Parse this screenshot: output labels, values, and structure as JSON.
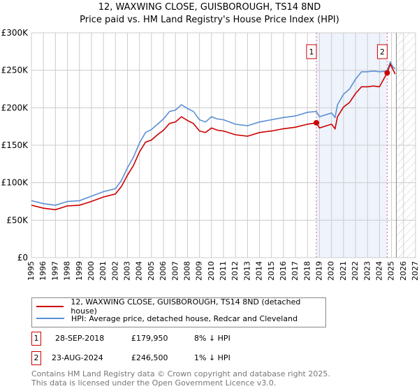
{
  "title": "12, WAXWING CLOSE, GUISBOROUGH, TS14 8ND",
  "subtitle": "Price paid vs. HM Land Registry's House Price Index (HPI)",
  "chart_data": {
    "type": "line",
    "title": "12, WAXWING CLOSE, GUISBOROUGH, TS14 8ND — Price paid vs. HM Land Registry's House Price Index (HPI)",
    "xlabel": "",
    "ylabel": "",
    "xlim": [
      1995,
      2027
    ],
    "ylim": [
      0,
      300000
    ],
    "grid": true,
    "x_ticks": [
      "1995",
      "1996",
      "1997",
      "1998",
      "1999",
      "2000",
      "2001",
      "2002",
      "2003",
      "2004",
      "2005",
      "2006",
      "2007",
      "2008",
      "2009",
      "2010",
      "2011",
      "2012",
      "2013",
      "2014",
      "2015",
      "2016",
      "2017",
      "2018",
      "2019",
      "2020",
      "2021",
      "2022",
      "2023",
      "2024",
      "2025",
      "2026",
      "2027"
    ],
    "y_ticks": [
      {
        "value": 0,
        "label": "£0"
      },
      {
        "value": 50000,
        "label": "£50K"
      },
      {
        "value": 100000,
        "label": "£100K"
      },
      {
        "value": 150000,
        "label": "£150K"
      },
      {
        "value": 200000,
        "label": "£200K"
      },
      {
        "value": 250000,
        "label": "£250K"
      },
      {
        "value": 300000,
        "label": "£300K"
      }
    ],
    "x": [
      1995,
      1996,
      1997,
      1998,
      1999,
      2000,
      2001,
      2002,
      2002.5,
      2003,
      2003.5,
      2004,
      2004.5,
      2005,
      2005.5,
      2006,
      2006.5,
      2007,
      2007.5,
      2008,
      2008.5,
      2009,
      2009.5,
      2010,
      2010.5,
      2011,
      2012,
      2013,
      2014,
      2015,
      2016,
      2017,
      2018,
      2018.74,
      2019,
      2020,
      2020.3,
      2020.5,
      2021,
      2021.5,
      2022,
      2022.5,
      2023,
      2023.5,
      2024,
      2024.64,
      2024.9,
      2025.1,
      2025.3
    ],
    "series": [
      {
        "name": "12, WAXWING CLOSE, GUISBOROUGH, TS14 8ND (detached house)",
        "color": "#cc0000",
        "values": [
          70000,
          66000,
          64000,
          69000,
          70000,
          75000,
          81000,
          85000,
          95000,
          110000,
          123000,
          141000,
          154000,
          157000,
          164000,
          170000,
          179000,
          181000,
          188000,
          183000,
          179000,
          169000,
          167000,
          173000,
          170000,
          169000,
          164000,
          162000,
          167000,
          169000,
          172000,
          174000,
          178000,
          179950,
          173000,
          178000,
          172000,
          188000,
          201000,
          207000,
          219000,
          228000,
          228000,
          229000,
          228000,
          246500,
          258000,
          252000,
          245000
        ]
      },
      {
        "name": "HPI: Average price, detached house, Redcar and Cleveland",
        "color": "#5b8fd4",
        "values": [
          76000,
          72000,
          70000,
          75000,
          76000,
          82000,
          88000,
          92000,
          103000,
          120000,
          134000,
          153000,
          167000,
          171000,
          178000,
          185000,
          195000,
          197000,
          204000,
          199000,
          195000,
          184000,
          181000,
          188000,
          185000,
          184000,
          178000,
          176000,
          181000,
          184000,
          187000,
          189000,
          194000,
          195000,
          188000,
          193000,
          187000,
          204000,
          218000,
          225000,
          238000,
          248000,
          248000,
          249000,
          248000,
          249000,
          261000,
          255000,
          252000
        ]
      }
    ],
    "sales": [
      {
        "id": "1",
        "x": 2018.74,
        "value": 179950
      },
      {
        "id": "2",
        "x": 2024.64,
        "value": 246500
      }
    ],
    "shaded_between_sales": true,
    "forecast_hatched_from": 2025.4,
    "legend_placement": "below"
  },
  "legend": {
    "items": [
      {
        "label": "12, WAXWING CLOSE, GUISBOROUGH, TS14 8ND (detached house)",
        "color": "#cc0000"
      },
      {
        "label": "HPI: Average price, detached house, Redcar and Cleveland",
        "color": "#5b8fd4"
      }
    ]
  },
  "transactions": [
    {
      "id": "1",
      "date": "28-SEP-2018",
      "price": "£179,950",
      "hpi": "8% ↓ HPI"
    },
    {
      "id": "2",
      "date": "23-AUG-2024",
      "price": "£246,500",
      "hpi": "1% ↓ HPI"
    }
  ],
  "footer": {
    "line1": "Contains HM Land Registry data © Crown copyright and database right 2025.",
    "line2": "This data is licensed under the Open Government Licence v3.0."
  }
}
